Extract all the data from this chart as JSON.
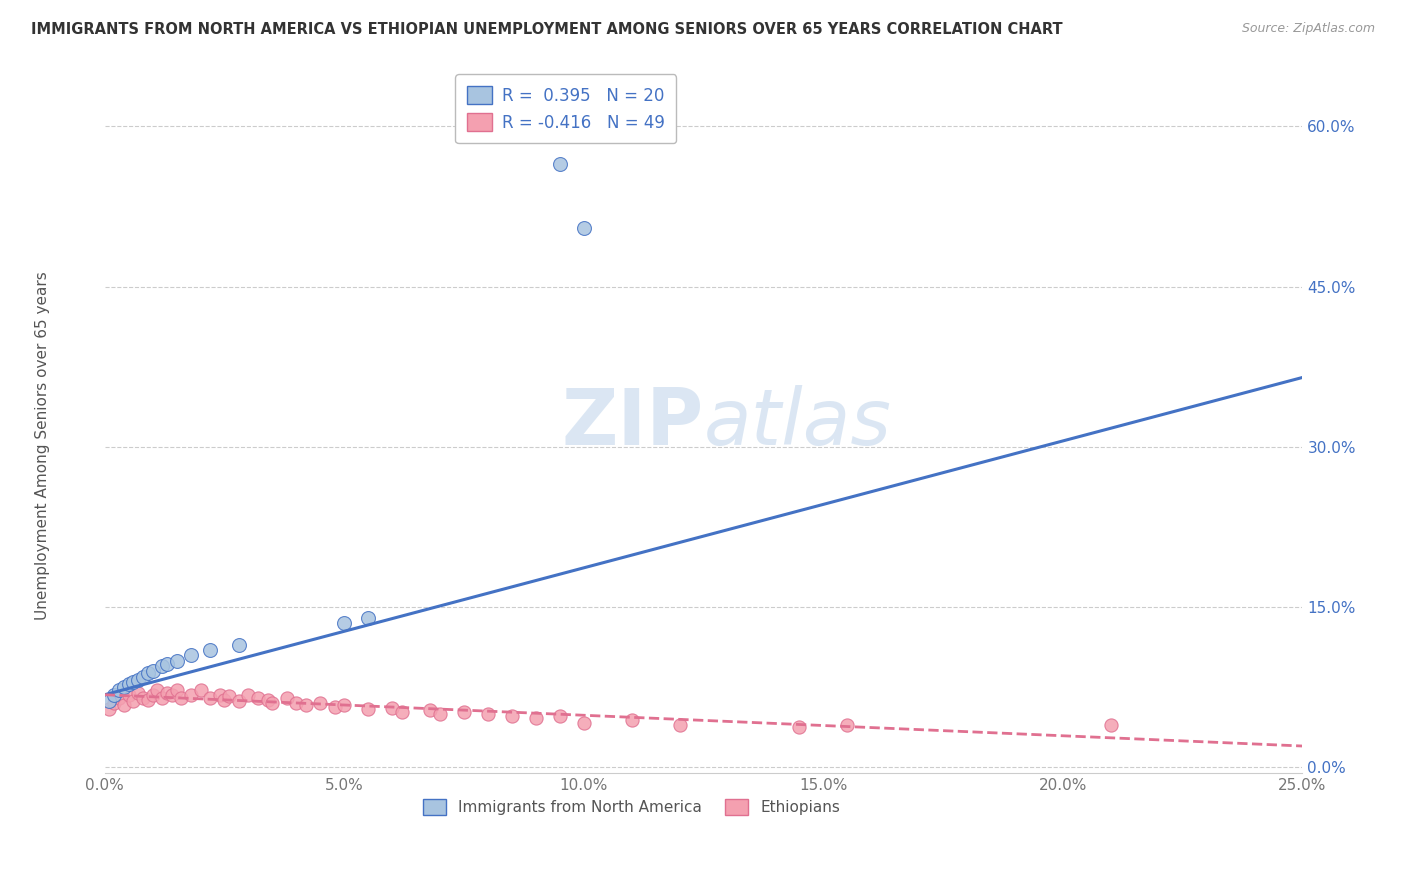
{
  "title": "IMMIGRANTS FROM NORTH AMERICA VS ETHIOPIAN UNEMPLOYMENT AMONG SENIORS OVER 65 YEARS CORRELATION CHART",
  "source": "Source: ZipAtlas.com",
  "ylabel": "Unemployment Among Seniors over 65 years",
  "xlim": [
    0.0,
    0.25
  ],
  "ylim": [
    -0.005,
    0.65
  ],
  "yticks": [
    0.0,
    0.15,
    0.3,
    0.45,
    0.6
  ],
  "ytick_labels": [
    "0.0%",
    "15.0%",
    "30.0%",
    "45.0%",
    "60.0%"
  ],
  "xticks": [
    0.0,
    0.05,
    0.1,
    0.15,
    0.2,
    0.25
  ],
  "xtick_labels": [
    "0.0%",
    "5.0%",
    "10.0%",
    "15.0%",
    "20.0%",
    "25.0%"
  ],
  "blue_scatter": [
    [
      0.001,
      0.062
    ],
    [
      0.002,
      0.068
    ],
    [
      0.003,
      0.072
    ],
    [
      0.004,
      0.075
    ],
    [
      0.005,
      0.078
    ],
    [
      0.006,
      0.08
    ],
    [
      0.007,
      0.082
    ],
    [
      0.008,
      0.085
    ],
    [
      0.009,
      0.088
    ],
    [
      0.01,
      0.09
    ],
    [
      0.012,
      0.095
    ],
    [
      0.013,
      0.097
    ],
    [
      0.015,
      0.1
    ],
    [
      0.018,
      0.105
    ],
    [
      0.022,
      0.11
    ],
    [
      0.028,
      0.115
    ],
    [
      0.05,
      0.135
    ],
    [
      0.055,
      0.14
    ],
    [
      0.095,
      0.565
    ],
    [
      0.1,
      0.505
    ]
  ],
  "pink_scatter": [
    [
      0.001,
      0.055
    ],
    [
      0.002,
      0.06
    ],
    [
      0.003,
      0.065
    ],
    [
      0.004,
      0.058
    ],
    [
      0.005,
      0.068
    ],
    [
      0.006,
      0.062
    ],
    [
      0.007,
      0.07
    ],
    [
      0.008,
      0.065
    ],
    [
      0.009,
      0.063
    ],
    [
      0.01,
      0.068
    ],
    [
      0.011,
      0.072
    ],
    [
      0.012,
      0.065
    ],
    [
      0.013,
      0.07
    ],
    [
      0.014,
      0.068
    ],
    [
      0.015,
      0.072
    ],
    [
      0.016,
      0.065
    ],
    [
      0.018,
      0.068
    ],
    [
      0.02,
      0.072
    ],
    [
      0.022,
      0.065
    ],
    [
      0.024,
      0.068
    ],
    [
      0.025,
      0.063
    ],
    [
      0.026,
      0.067
    ],
    [
      0.028,
      0.062
    ],
    [
      0.03,
      0.068
    ],
    [
      0.032,
      0.065
    ],
    [
      0.034,
      0.063
    ],
    [
      0.035,
      0.06
    ],
    [
      0.038,
      0.065
    ],
    [
      0.04,
      0.06
    ],
    [
      0.042,
      0.058
    ],
    [
      0.045,
      0.06
    ],
    [
      0.048,
      0.057
    ],
    [
      0.05,
      0.058
    ],
    [
      0.055,
      0.055
    ],
    [
      0.06,
      0.056
    ],
    [
      0.062,
      0.052
    ],
    [
      0.068,
      0.054
    ],
    [
      0.07,
      0.05
    ],
    [
      0.075,
      0.052
    ],
    [
      0.08,
      0.05
    ],
    [
      0.085,
      0.048
    ],
    [
      0.09,
      0.046
    ],
    [
      0.095,
      0.048
    ],
    [
      0.1,
      0.042
    ],
    [
      0.11,
      0.044
    ],
    [
      0.12,
      0.04
    ],
    [
      0.145,
      0.038
    ],
    [
      0.155,
      0.04
    ],
    [
      0.21,
      0.04
    ]
  ],
  "blue_color": "#a8c4e0",
  "pink_color": "#f4a0b0",
  "blue_line_color": "#4472c4",
  "pink_line_color": "#e07090",
  "R_blue": 0.395,
  "N_blue": 20,
  "R_pink": -0.416,
  "N_pink": 49,
  "blue_trend_x": [
    0.0,
    0.25
  ],
  "blue_trend_y": [
    0.068,
    0.365
  ],
  "pink_trend_x": [
    0.0,
    0.25
  ],
  "pink_trend_y": [
    0.068,
    0.02
  ],
  "watermark_zip": "ZIP",
  "watermark_atlas": "atlas",
  "background_color": "#ffffff",
  "grid_color": "#cccccc"
}
